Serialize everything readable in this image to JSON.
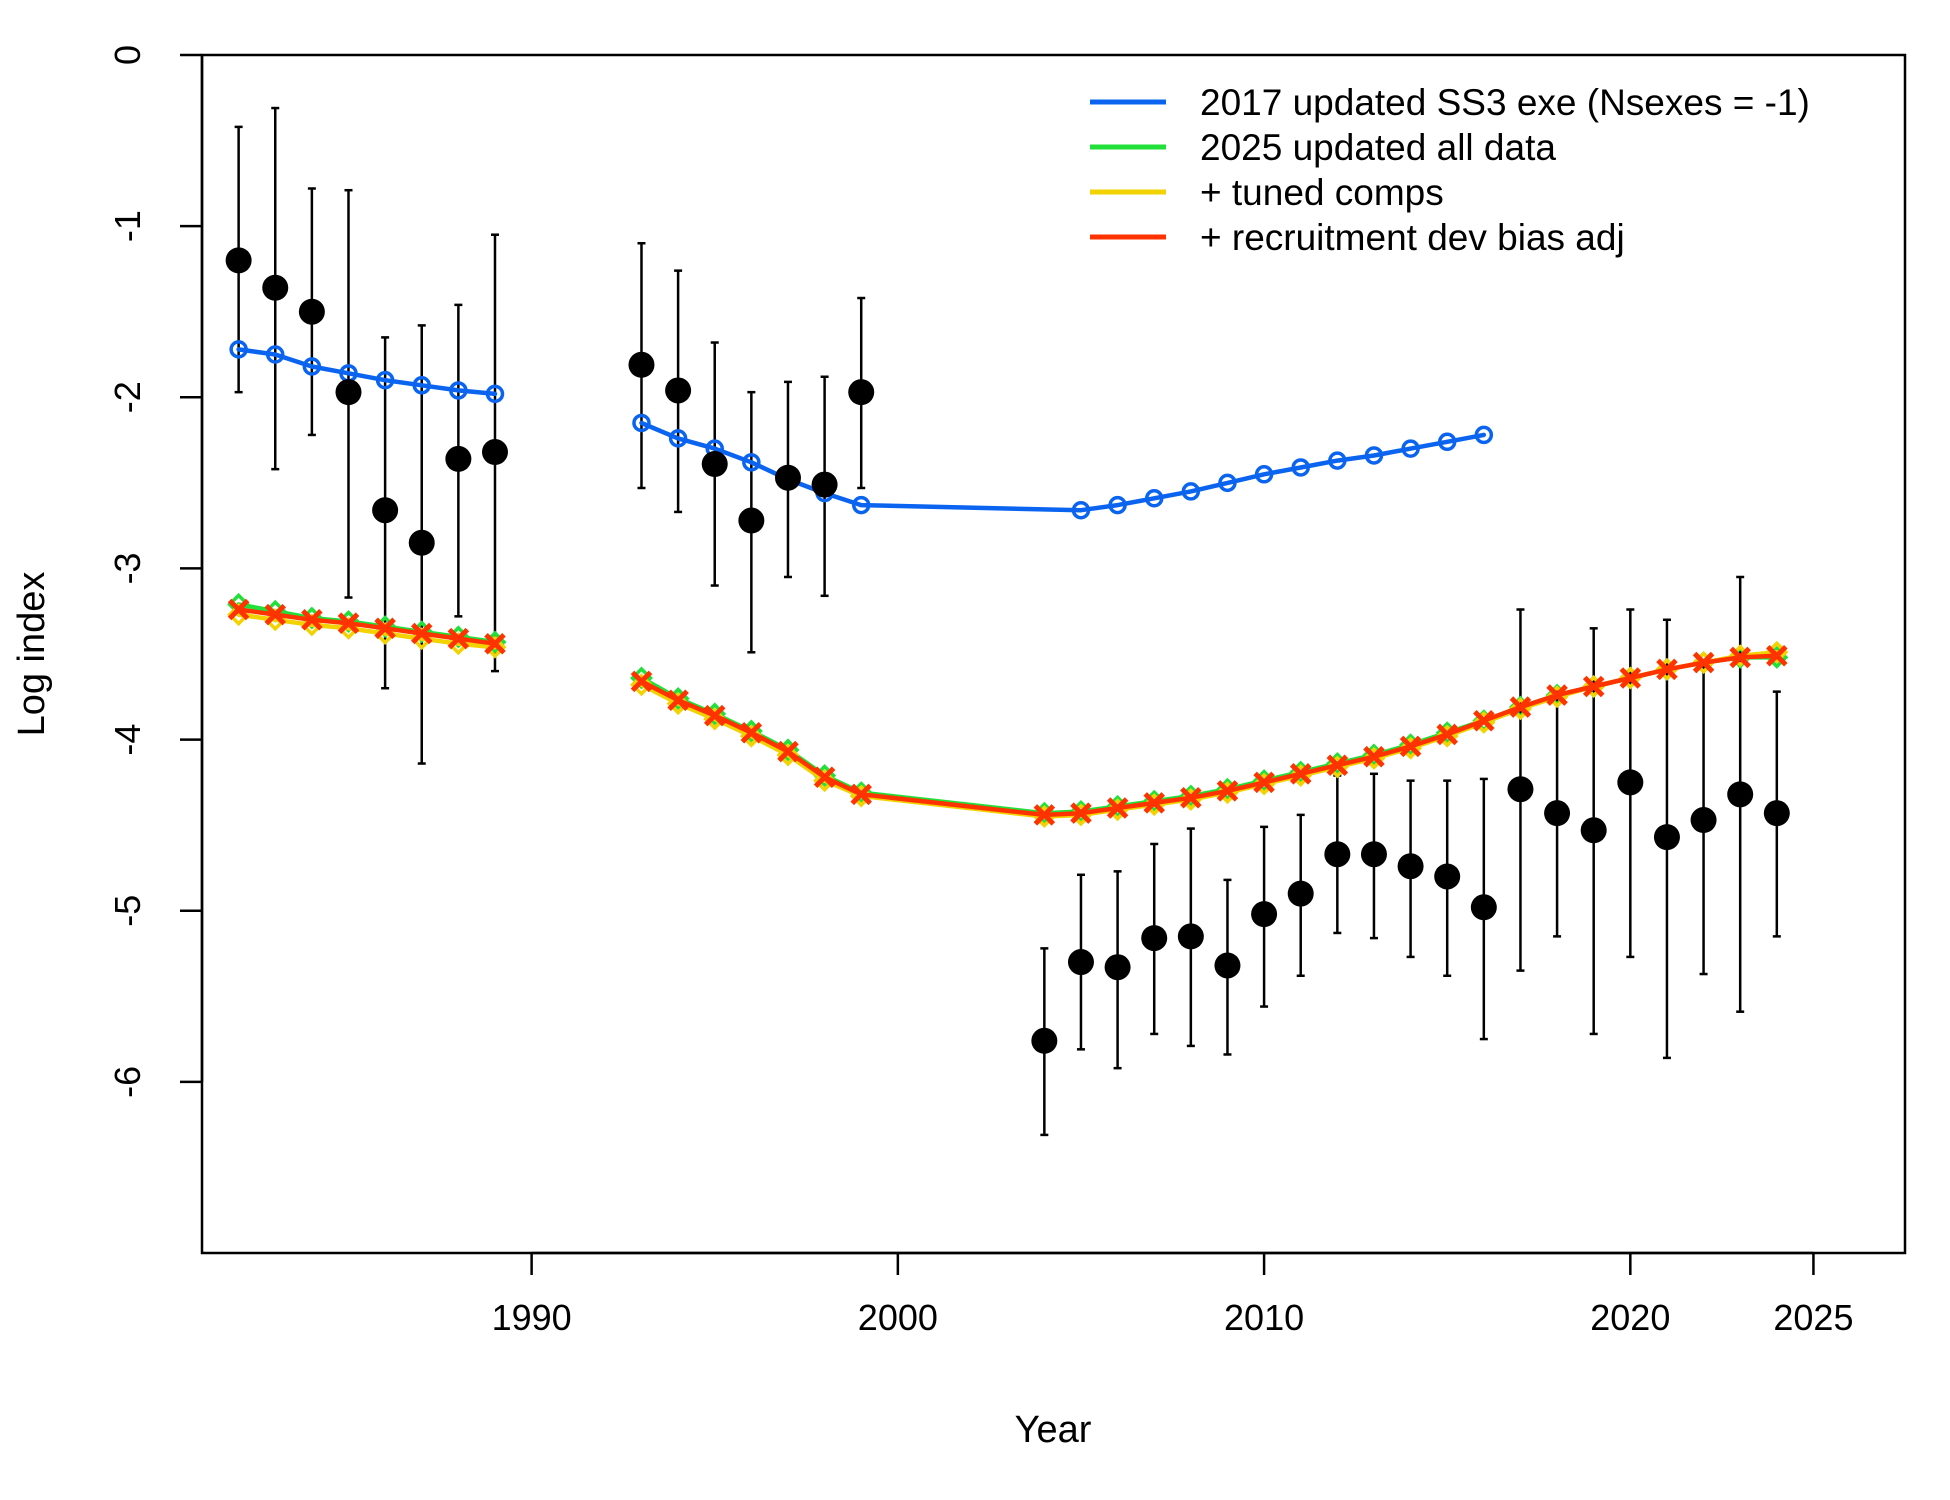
{
  "chart_data": {
    "type": "line",
    "title": "",
    "xlabel": "Year",
    "ylabel": "Log index",
    "xlim": [
      1981,
      2027.5
    ],
    "ylim": [
      -7,
      0
    ],
    "x_ticks": [
      1990,
      2000,
      2010,
      2020,
      2025
    ],
    "y_ticks": [
      0,
      -1,
      -2,
      -3,
      -4,
      -5,
      -6
    ],
    "grid": false,
    "legend_position": "top-right",
    "colors": {
      "observed": "#000000",
      "blue": "#0a64f0",
      "green": "#22e03a",
      "yellow": "#f2d200",
      "red": "#ff3300"
    },
    "observed": {
      "x": [
        1982,
        1983,
        1984,
        1985,
        1986,
        1987,
        1988,
        1989,
        1993,
        1994,
        1995,
        1996,
        1997,
        1998,
        1999,
        2004,
        2005,
        2006,
        2007,
        2008,
        2009,
        2010,
        2011,
        2012,
        2013,
        2014,
        2015,
        2016,
        2017,
        2018,
        2019,
        2020,
        2021,
        2022,
        2023,
        2024
      ],
      "y": [
        -1.2,
        -1.36,
        -1.5,
        -1.97,
        -2.66,
        -2.85,
        -2.36,
        -2.32,
        -1.81,
        -1.96,
        -2.39,
        -2.72,
        -2.47,
        -2.51,
        -1.97,
        -5.76,
        -5.3,
        -5.33,
        -5.16,
        -5.15,
        -5.32,
        -5.02,
        -4.9,
        -4.67,
        -4.67,
        -4.74,
        -4.8,
        -4.98,
        -4.29,
        -4.43,
        -4.53,
        -4.25,
        -4.57,
        -4.47,
        -4.32,
        -4.43
      ],
      "lower": [
        -1.97,
        -2.42,
        -2.22,
        -3.17,
        -3.7,
        -4.14,
        -3.28,
        -3.6,
        -2.53,
        -2.67,
        -3.1,
        -3.49,
        -3.05,
        -3.16,
        -2.53,
        -6.31,
        -5.81,
        -5.92,
        -5.72,
        -5.79,
        -5.84,
        -5.56,
        -5.38,
        -5.13,
        -5.16,
        -5.27,
        -5.38,
        -5.75,
        -5.35,
        -5.15,
        -5.72,
        -5.27,
        -5.86,
        -5.37,
        -5.59,
        -5.15
      ],
      "upper": [
        -0.42,
        -0.31,
        -0.78,
        -0.79,
        -1.65,
        -1.58,
        -1.46,
        -1.05,
        -1.1,
        -1.26,
        -1.68,
        -1.97,
        -1.91,
        -1.88,
        -1.42,
        -5.22,
        -4.79,
        -4.77,
        -4.61,
        -4.52,
        -4.82,
        -4.51,
        -4.44,
        -4.21,
        -4.2,
        -4.24,
        -4.24,
        -4.23,
        -3.24,
        -3.72,
        -3.35,
        -3.24,
        -3.3,
        -3.56,
        -3.05,
        -3.72
      ]
    },
    "series": [
      {
        "name": "2017 updated SS3 exe (Nsexes = -1)",
        "color": "#0a64f0",
        "marker": "circle",
        "segments": [
          {
            "x": [
              1982,
              1983,
              1984,
              1985,
              1986,
              1987,
              1988,
              1989
            ],
            "y": [
              -1.72,
              -1.75,
              -1.82,
              -1.86,
              -1.9,
              -1.93,
              -1.96,
              -1.98
            ]
          },
          {
            "x": [
              1993,
              1994,
              1995,
              1996,
              1997,
              1998,
              1999,
              2005,
              2006,
              2007,
              2008,
              2009,
              2010,
              2011,
              2012,
              2013,
              2014,
              2015,
              2016
            ],
            "y": [
              -2.15,
              -2.24,
              -2.3,
              -2.38,
              -2.48,
              -2.56,
              -2.63,
              -2.66,
              -2.63,
              -2.59,
              -2.55,
              -2.5,
              -2.45,
              -2.41,
              -2.37,
              -2.34,
              -2.3,
              -2.26,
              -2.22
            ]
          }
        ]
      },
      {
        "name": "2025 updated all data",
        "color": "#22e03a",
        "marker": "diamond",
        "segments": [
          {
            "x": [
              1982,
              1983,
              1984,
              1985,
              1986,
              1987,
              1988,
              1989
            ],
            "y": [
              -3.21,
              -3.25,
              -3.29,
              -3.31,
              -3.34,
              -3.37,
              -3.4,
              -3.43
            ]
          },
          {
            "x": [
              1993,
              1994,
              1995,
              1996,
              1997,
              1998,
              1999,
              2004,
              2005,
              2006,
              2007,
              2008,
              2009,
              2010,
              2011,
              2012,
              2013,
              2014,
              2015,
              2016,
              2017,
              2018,
              2019,
              2020,
              2021,
              2022,
              2023,
              2024
            ],
            "y": [
              -3.64,
              -3.76,
              -3.85,
              -3.95,
              -4.06,
              -4.21,
              -4.31,
              -4.43,
              -4.42,
              -4.39,
              -4.36,
              -4.33,
              -4.29,
              -4.24,
              -4.19,
              -4.14,
              -4.09,
              -4.03,
              -3.96,
              -3.89,
              -3.81,
              -3.74,
              -3.69,
              -3.64,
              -3.59,
              -3.55,
              -3.52,
              -3.52
            ]
          }
        ]
      },
      {
        "name": "+ tuned comps",
        "color": "#f2d200",
        "marker": "diamond",
        "segments": [
          {
            "x": [
              1982,
              1983,
              1984,
              1985,
              1986,
              1987,
              1988,
              1989
            ],
            "y": [
              -3.27,
              -3.3,
              -3.33,
              -3.35,
              -3.38,
              -3.41,
              -3.44,
              -3.46
            ]
          },
          {
            "x": [
              1993,
              1994,
              1995,
              1996,
              1997,
              1998,
              1999,
              2004,
              2005,
              2006,
              2007,
              2008,
              2009,
              2010,
              2011,
              2012,
              2013,
              2014,
              2015,
              2016,
              2017,
              2018,
              2019,
              2020,
              2021,
              2022,
              2023,
              2024
            ],
            "y": [
              -3.68,
              -3.79,
              -3.88,
              -3.98,
              -4.09,
              -4.24,
              -4.33,
              -4.45,
              -4.44,
              -4.41,
              -4.38,
              -4.35,
              -4.31,
              -4.26,
              -4.21,
              -4.16,
              -4.11,
              -4.05,
              -3.98,
              -3.9,
              -3.82,
              -3.75,
              -3.69,
              -3.64,
              -3.59,
              -3.55,
              -3.51,
              -3.49
            ]
          }
        ]
      },
      {
        "name": "+ recruitment dev bias adj",
        "color": "#ff3300",
        "marker": "cross",
        "segments": [
          {
            "x": [
              1982,
              1983,
              1984,
              1985,
              1986,
              1987,
              1988,
              1989
            ],
            "y": [
              -3.24,
              -3.27,
              -3.3,
              -3.32,
              -3.35,
              -3.38,
              -3.41,
              -3.44
            ]
          },
          {
            "x": [
              1993,
              1994,
              1995,
              1996,
              1997,
              1998,
              1999,
              2004,
              2005,
              2006,
              2007,
              2008,
              2009,
              2010,
              2011,
              2012,
              2013,
              2014,
              2015,
              2016,
              2017,
              2018,
              2019,
              2020,
              2021,
              2022,
              2023,
              2024
            ],
            "y": [
              -3.66,
              -3.77,
              -3.86,
              -3.96,
              -4.07,
              -4.22,
              -4.32,
              -4.44,
              -4.43,
              -4.4,
              -4.37,
              -4.34,
              -4.3,
              -4.25,
              -4.2,
              -4.15,
              -4.1,
              -4.04,
              -3.97,
              -3.89,
              -3.81,
              -3.74,
              -3.69,
              -3.64,
              -3.59,
              -3.55,
              -3.52,
              -3.51
            ]
          }
        ]
      }
    ]
  }
}
